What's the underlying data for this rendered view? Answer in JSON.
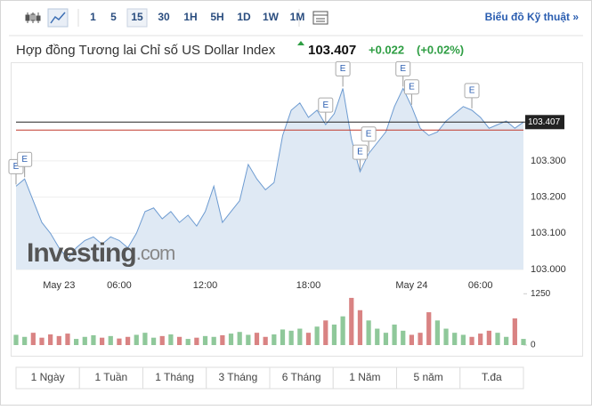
{
  "toolbar": {
    "intervals": [
      "1",
      "5",
      "15",
      "30",
      "1H",
      "5H",
      "1D",
      "1W",
      "1M"
    ],
    "active": "15",
    "link": "Biểu đồ Kỹ thuật »"
  },
  "header": {
    "title": "Hợp đồng Tương lai Chỉ số US Dollar Index",
    "price": "103.407",
    "change": "+0.022",
    "change_pct": "(+0.02%)"
  },
  "watermark": {
    "brand": "Investing",
    "suffix": ".com"
  },
  "chart_data": {
    "type": "area",
    "color": "#6d9bd1",
    "fill": "#dfe9f4",
    "categories": [
      null,
      null,
      null,
      null,
      null,
      "May 23",
      null,
      null,
      null,
      null,
      null,
      null,
      "06:00",
      null,
      null,
      null,
      null,
      null,
      null,
      null,
      null,
      null,
      "12:00",
      null,
      null,
      null,
      null,
      null,
      null,
      null,
      null,
      null,
      null,
      null,
      "18:00",
      null,
      null,
      null,
      null,
      null,
      null,
      null,
      null,
      null,
      null,
      null,
      "May 24",
      null,
      null,
      null,
      null,
      null,
      null,
      null,
      "06:00",
      null,
      null,
      null,
      null,
      null
    ],
    "values": [
      103.23,
      103.25,
      103.19,
      103.13,
      103.1,
      103.06,
      103.03,
      103.06,
      103.08,
      103.09,
      103.07,
      103.09,
      103.08,
      103.06,
      103.1,
      103.16,
      103.17,
      103.14,
      103.16,
      103.13,
      103.15,
      103.12,
      103.16,
      103.23,
      103.13,
      103.16,
      103.19,
      103.29,
      103.25,
      103.22,
      103.24,
      103.37,
      103.44,
      103.46,
      103.42,
      103.44,
      103.4,
      103.43,
      103.5,
      103.36,
      103.27,
      103.32,
      103.35,
      103.38,
      103.45,
      103.5,
      103.45,
      103.39,
      103.37,
      103.38,
      103.41,
      103.43,
      103.45,
      103.44,
      103.42,
      103.39,
      103.4,
      103.41,
      103.39,
      103.407
    ],
    "ylim": [
      103.0,
      103.56
    ],
    "yticks": [
      {
        "value": 103.0,
        "label": "103.000"
      },
      {
        "value": 103.1,
        "label": "103.100"
      },
      {
        "value": 103.2,
        "label": "103.200"
      },
      {
        "value": 103.3,
        "label": "103.300"
      }
    ],
    "last_price": 103.407,
    "reference_line": 103.385,
    "reference_color": "#c0392b",
    "events": [
      {
        "index": 0,
        "label": "E"
      },
      {
        "index": 1,
        "label": "E"
      },
      {
        "index": 36,
        "label": "E"
      },
      {
        "index": 38,
        "label": "E"
      },
      {
        "index": 40,
        "label": "E"
      },
      {
        "index": 41,
        "label": "E"
      },
      {
        "index": 45,
        "label": "E"
      },
      {
        "index": 46,
        "label": "E"
      },
      {
        "index": 53,
        "label": "E"
      }
    ],
    "volume": {
      "values": [
        250,
        200,
        300,
        180,
        260,
        220,
        280,
        150,
        200,
        240,
        180,
        220,
        160,
        200,
        250,
        300,
        180,
        220,
        260,
        200,
        150,
        180,
        220,
        200,
        240,
        280,
        320,
        250,
        300,
        200,
        260,
        380,
        350,
        400,
        300,
        450,
        600,
        500,
        700,
        1150,
        850,
        600,
        400,
        300,
        500,
        350,
        250,
        300,
        800,
        600,
        400,
        300,
        250,
        200,
        280,
        350,
        300,
        200,
        650,
        150
      ],
      "ylim": [
        0,
        1300
      ],
      "yticks": [
        0,
        1250
      ],
      "up_color": "#8fc89a",
      "down_color": "#d98383"
    }
  },
  "ranges": [
    "1 Ngày",
    "1 Tuần",
    "1 Tháng",
    "3 Tháng",
    "6 Tháng",
    "1 Năm",
    "5 năm",
    "T.đa"
  ]
}
